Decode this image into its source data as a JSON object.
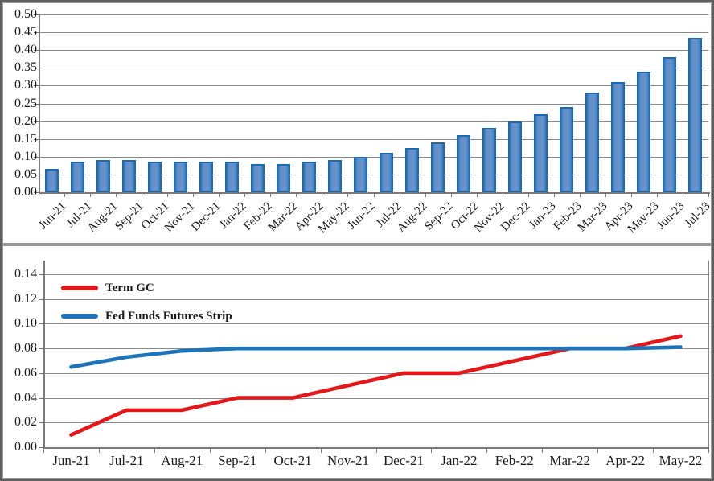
{
  "colors": {
    "term_gc_red": "#e2191c",
    "fed_funds_blue": "#1e73b9",
    "bar_fill": "#5b8cc7",
    "bar_border": "#1e68ae",
    "gridline": "#8a8a8a",
    "axis": "#7a7a7a"
  },
  "chart_data": [
    {
      "type": "bar",
      "title": "",
      "xlabel": "",
      "ylabel": "",
      "categories": [
        "Jun-21",
        "Jul-21",
        "Aug-21",
        "Sep-21",
        "Oct-21",
        "Nov-21",
        "Dec-21",
        "Jan-22",
        "Feb-22",
        "Mar-22",
        "Apr-22",
        "May-22",
        "Jun-22",
        "Jul-22",
        "Aug-22",
        "Sep-22",
        "Oct-22",
        "Nov-22",
        "Dec-22",
        "Jan-23",
        "Feb-23",
        "Mar-23",
        "Apr-23",
        "May-23",
        "Jun-23",
        "Jul-23"
      ],
      "values": [
        0.065,
        0.085,
        0.09,
        0.09,
        0.085,
        0.085,
        0.085,
        0.085,
        0.08,
        0.08,
        0.085,
        0.09,
        0.1,
        0.11,
        0.125,
        0.14,
        0.16,
        0.18,
        0.2,
        0.22,
        0.24,
        0.28,
        0.31,
        0.34,
        0.38,
        0.435
      ],
      "ylim": [
        0,
        0.5
      ],
      "ytick_labels": [
        "0.50",
        "0.45",
        "0.40",
        "0.35",
        "0.30",
        "0.25",
        "0.20",
        "0.15",
        "0.10",
        "0.05",
        "0.00"
      ],
      "grid": "horizontal",
      "legend": "none"
    },
    {
      "type": "line",
      "title": "",
      "xlabel": "",
      "ylabel": "",
      "categories": [
        "Jun-21",
        "Jul-21",
        "Aug-21",
        "Sep-21",
        "Oct-21",
        "Nov-21",
        "Dec-21",
        "Jan-22",
        "Feb-22",
        "Mar-22",
        "Apr-22",
        "May-22"
      ],
      "series": [
        {
          "name": "Term GC",
          "color": "#e2191c",
          "values": [
            0.01,
            0.03,
            0.03,
            0.04,
            0.04,
            0.05,
            0.06,
            0.06,
            0.07,
            0.08,
            0.08,
            0.09
          ]
        },
        {
          "name": "Fed Funds Futures Strip",
          "color": "#1e73b9",
          "values": [
            0.065,
            0.073,
            0.078,
            0.08,
            0.08,
            0.08,
            0.08,
            0.08,
            0.08,
            0.08,
            0.08,
            0.081
          ]
        }
      ],
      "ylim": [
        0,
        0.151
      ],
      "ytick_labels": [
        "0.14",
        "0.12",
        "0.10",
        "0.08",
        "0.06",
        "0.04",
        "0.02",
        "0.00"
      ],
      "grid": "horizontal",
      "legend": "top-left inside"
    }
  ]
}
